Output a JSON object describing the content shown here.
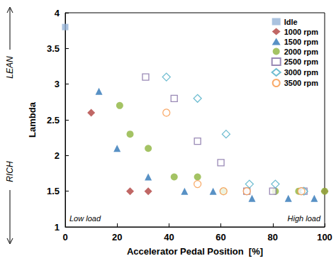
{
  "chart_data": {
    "type": "scatter",
    "x_label": "Accelerator Pedal Position  [%]",
    "y_label": "Lambda",
    "xlim": [
      0,
      100
    ],
    "xticks": [
      0,
      20,
      40,
      60,
      80,
      100
    ],
    "ylim": [
      1,
      4
    ],
    "yticks": [
      1,
      1.5,
      2,
      2.5,
      3,
      3.5,
      4
    ],
    "grid": false,
    "legend": "upper right",
    "annotations": [
      "LEAN",
      "RICH",
      "Low load",
      "High load"
    ],
    "series": [
      {
        "name": "Idle",
        "color": "#95b3d7",
        "marker": "square",
        "x": [
          0
        ],
        "values": [
          3.8
        ]
      },
      {
        "name": "1000 rpm",
        "color": "#b0413e",
        "marker": "diamond",
        "x": [
          10,
          25,
          32,
          70,
          100
        ],
        "values": [
          2.6,
          1.5,
          1.5,
          1.5,
          1.5
        ]
      },
      {
        "name": "1500 rpm",
        "color": "#2e75b6",
        "marker": "triangle",
        "x": [
          13,
          20,
          32,
          46,
          57,
          72,
          86,
          96
        ],
        "values": [
          2.9,
          2.1,
          1.7,
          1.5,
          1.5,
          1.4,
          1.4,
          1.4
        ]
      },
      {
        "name": "2000 rpm",
        "color": "#8db43d",
        "marker": "circle",
        "x": [
          21,
          25,
          32,
          42,
          51,
          61,
          81,
          90,
          100
        ],
        "values": [
          2.7,
          2.3,
          2.1,
          1.7,
          1.7,
          1.5,
          1.5,
          1.5,
          1.5
        ]
      },
      {
        "name": "2500 rpm",
        "color": "#7f6ba3",
        "marker": "open-square",
        "x": [
          31,
          42,
          51,
          60,
          70,
          80,
          92
        ],
        "values": [
          3.1,
          2.8,
          2.2,
          1.9,
          1.5,
          1.5,
          1.5
        ]
      },
      {
        "name": "3000 rpm",
        "color": "#4bacc6",
        "marker": "open-diamond",
        "x": [
          39,
          51,
          62,
          71,
          81,
          92
        ],
        "values": [
          3.1,
          2.8,
          2.3,
          1.6,
          1.6,
          1.5
        ]
      },
      {
        "name": "3500 rpm",
        "color": "#f79646",
        "marker": "open-circle",
        "x": [
          39,
          51,
          61,
          70,
          91
        ],
        "values": [
          2.6,
          1.6,
          1.5,
          1.5,
          1.5
        ]
      }
    ]
  }
}
